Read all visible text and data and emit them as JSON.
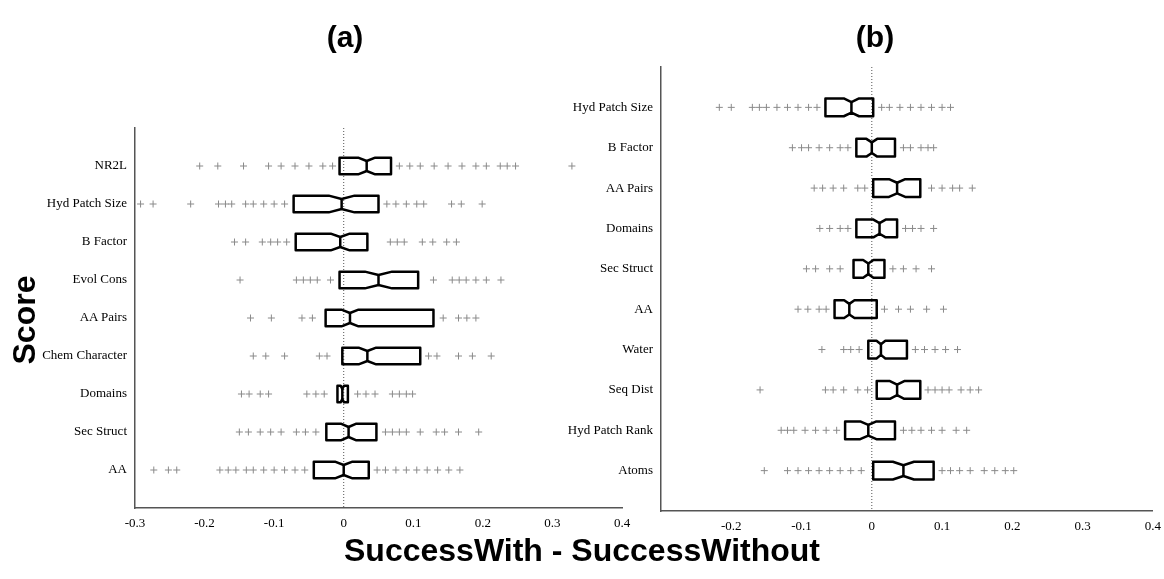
{
  "chart_data": [
    {
      "type": "box",
      "orientation": "horizontal",
      "title": "(a)",
      "ylabel": "Score",
      "xlabel": "SuccessWith - SuccessWithout",
      "categories": [
        "NR2L",
        "Hyd Patch Size",
        "B Factor",
        "Evol Cons",
        "AA Pairs",
        "Chem Character",
        "Domains",
        "Sec Struct",
        "AA"
      ],
      "xlim": [
        -0.3,
        0.4
      ],
      "xticks": [
        -0.3,
        -0.2,
        -0.1,
        0,
        0.1,
        0.2,
        0.3,
        0.4
      ],
      "ref_lines": [
        {
          "axis": "x",
          "value": 0,
          "line_style": "dotted"
        }
      ],
      "series": [
        {
          "color": "#000000",
          "boxes": [
            {
              "low": -0.006,
              "q1": -0.006,
              "median": 0.033,
              "q3": 0.068,
              "high": 0.068,
              "outliers": [
                -0.207,
                -0.181,
                -0.144,
                -0.108,
                -0.09,
                -0.07,
                -0.05,
                -0.03,
                -0.016,
                0.08,
                0.095,
                0.11,
                0.13,
                0.15,
                0.17,
                0.19,
                0.205,
                0.225,
                0.235,
                0.247,
                0.328
              ]
            },
            {
              "low": -0.072,
              "q1": -0.072,
              "median": -0.003,
              "q3": 0.05,
              "high": 0.05,
              "outliers": [
                -0.292,
                -0.274,
                -0.22,
                -0.18,
                -0.17,
                -0.161,
                -0.141,
                -0.13,
                -0.115,
                -0.1,
                -0.085,
                0.062,
                0.075,
                0.09,
                0.105,
                0.115,
                0.155,
                0.169,
                0.199
              ]
            },
            {
              "low": -0.069,
              "q1": -0.069,
              "median": -0.005,
              "q3": 0.034,
              "high": 0.034,
              "outliers": [
                -0.157,
                -0.141,
                -0.117,
                -0.105,
                -0.095,
                -0.082,
                0.067,
                0.077,
                0.087,
                0.113,
                0.128,
                0.148,
                0.162
              ]
            },
            {
              "low": -0.006,
              "q1": -0.006,
              "median": 0.05,
              "q3": 0.107,
              "high": 0.107,
              "outliers": [
                -0.149,
                -0.068,
                -0.058,
                -0.048,
                -0.038,
                -0.019,
                0.129,
                0.156,
                0.166,
                0.176,
                0.19,
                0.205,
                0.226
              ]
            },
            {
              "low": -0.026,
              "q1": -0.026,
              "median": 0.009,
              "q3": 0.129,
              "high": 0.129,
              "outliers": [
                -0.134,
                -0.104,
                -0.06,
                -0.045,
                0.143,
                0.165,
                0.177,
                0.19
              ]
            },
            {
              "low": -0.002,
              "q1": -0.002,
              "median": 0.034,
              "q3": 0.11,
              "high": 0.11,
              "outliers": [
                -0.13,
                -0.112,
                -0.085,
                -0.035,
                -0.024,
                0.122,
                0.134,
                0.165,
                0.185,
                0.212
              ]
            },
            {
              "low": -0.009,
              "q1": -0.009,
              "median": -0.002,
              "q3": 0.006,
              "high": 0.006,
              "outliers": [
                -0.147,
                -0.136,
                -0.12,
                -0.108,
                -0.053,
                -0.04,
                -0.028,
                0.02,
                0.032,
                0.045,
                0.07,
                0.08,
                0.09,
                0.099
              ]
            },
            {
              "low": -0.025,
              "q1": -0.025,
              "median": 0.007,
              "q3": 0.047,
              "high": 0.047,
              "outliers": [
                -0.15,
                -0.137,
                -0.12,
                -0.105,
                -0.09,
                -0.068,
                -0.055,
                -0.04,
                0.06,
                0.07,
                0.08,
                0.09,
                0.11,
                0.133,
                0.145,
                0.165,
                0.194
              ]
            },
            {
              "low": -0.043,
              "q1": -0.043,
              "median": 0,
              "q3": 0.036,
              "high": 0.036,
              "outliers": [
                -0.273,
                -0.252,
                -0.24,
                -0.178,
                -0.166,
                -0.155,
                -0.14,
                -0.13,
                -0.115,
                -0.1,
                -0.085,
                -0.07,
                -0.056,
                0.048,
                0.06,
                0.075,
                0.09,
                0.105,
                0.12,
                0.135,
                0.151,
                0.167
              ]
            }
          ]
        }
      ]
    },
    {
      "type": "box",
      "orientation": "horizontal",
      "title": "(b)",
      "categories": [
        "Hyd Patch Size",
        "B Factor",
        "AA Pairs",
        "Domains",
        "Sec Struct",
        "AA",
        "Water",
        "Seq Dist",
        "Hyd Patch Rank",
        "Atoms"
      ],
      "xlim": [
        -0.3,
        0.4
      ],
      "xticks": [
        -0.2,
        -0.1,
        0,
        0.1,
        0.2,
        0.3,
        0.4
      ],
      "ref_lines": [
        {
          "axis": "x",
          "value": 0,
          "line_style": "dotted"
        }
      ],
      "series": [
        {
          "color": "#000000",
          "boxes": [
            {
              "low": -0.066,
              "q1": -0.066,
              "median": -0.029,
              "q3": 0.002,
              "high": 0.002,
              "outliers": [
                -0.217,
                -0.2,
                -0.17,
                -0.16,
                -0.15,
                -0.135,
                -0.12,
                -0.105,
                -0.09,
                -0.078,
                0.014,
                0.025,
                0.04,
                0.055,
                0.07,
                0.085,
                0.1,
                0.112
              ]
            },
            {
              "low": -0.022,
              "q1": -0.022,
              "median": 0,
              "q3": 0.033,
              "high": 0.033,
              "outliers": [
                -0.113,
                -0.1,
                -0.09,
                -0.075,
                -0.06,
                -0.045,
                -0.034,
                0.045,
                0.055,
                0.07,
                0.08,
                0.088
              ]
            },
            {
              "low": 0.002,
              "q1": 0.002,
              "median": 0.036,
              "q3": 0.069,
              "high": 0.069,
              "outliers": [
                -0.082,
                -0.07,
                -0.055,
                -0.04,
                -0.02,
                -0.01,
                0.085,
                0.1,
                0.115,
                0.125,
                0.143
              ]
            },
            {
              "low": -0.022,
              "q1": -0.022,
              "median": 0.011,
              "q3": 0.036,
              "high": 0.036,
              "outliers": [
                -0.074,
                -0.06,
                -0.045,
                -0.034,
                0.048,
                0.058,
                0.07,
                0.088
              ]
            },
            {
              "low": -0.026,
              "q1": -0.026,
              "median": -0.005,
              "q3": 0.018,
              "high": 0.018,
              "outliers": [
                -0.093,
                -0.08,
                -0.06,
                -0.045,
                0.03,
                0.045,
                0.063,
                0.085
              ]
            },
            {
              "low": -0.053,
              "q1": -0.053,
              "median": -0.032,
              "q3": 0.007,
              "high": 0.007,
              "outliers": [
                -0.105,
                -0.091,
                -0.075,
                -0.065,
                0.018,
                0.038,
                0.055,
                0.078,
                0.102
              ]
            },
            {
              "low": -0.005,
              "q1": -0.005,
              "median": 0.013,
              "q3": 0.05,
              "high": 0.05,
              "outliers": [
                -0.071,
                -0.04,
                -0.03,
                -0.018,
                0.062,
                0.075,
                0.09,
                0.105,
                0.122
              ]
            },
            {
              "low": 0.007,
              "q1": 0.007,
              "median": 0.036,
              "q3": 0.069,
              "high": 0.069,
              "outliers": [
                -0.159,
                -0.066,
                -0.055,
                -0.04,
                -0.02,
                -0.006,
                0.08,
                0.09,
                0.1,
                0.11,
                0.127,
                0.14,
                0.152
              ]
            },
            {
              "low": -0.038,
              "q1": -0.038,
              "median": -0.005,
              "q3": 0.033,
              "high": 0.033,
              "outliers": [
                -0.129,
                -0.12,
                -0.111,
                -0.095,
                -0.08,
                -0.065,
                -0.05,
                0.045,
                0.057,
                0.07,
                0.085,
                0.1,
                0.12,
                0.135
              ]
            },
            {
              "low": 0.002,
              "q1": 0.002,
              "median": 0.045,
              "q3": 0.088,
              "high": 0.088,
              "outliers": [
                -0.153,
                -0.12,
                -0.105,
                -0.09,
                -0.075,
                -0.06,
                -0.045,
                -0.03,
                -0.015,
                0.1,
                0.112,
                0.125,
                0.14,
                0.16,
                0.175,
                0.19,
                0.202
              ]
            }
          ]
        }
      ]
    }
  ]
}
